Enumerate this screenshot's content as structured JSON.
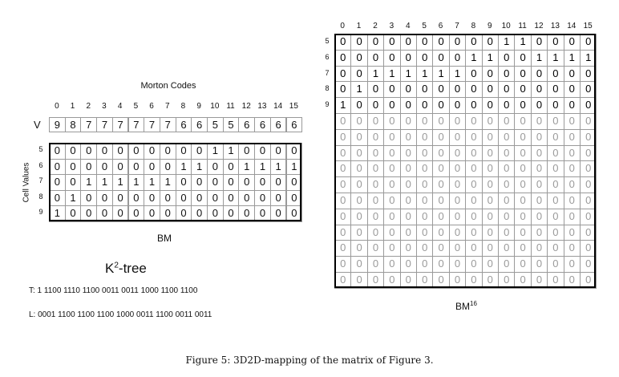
{
  "left": {
    "title": "Morton Codes",
    "col_indices": [
      "0",
      "1",
      "2",
      "3",
      "4",
      "5",
      "6",
      "7",
      "8",
      "9",
      "10",
      "11",
      "12",
      "13",
      "14",
      "15"
    ],
    "v_label": "V",
    "v_values": [
      "9",
      "8",
      "7",
      "7",
      "7",
      "7",
      "7",
      "7",
      "6",
      "6",
      "5",
      "5",
      "6",
      "6",
      "6",
      "6"
    ],
    "row_axis_label": "Cell Values",
    "row_labels": [
      "5",
      "6",
      "7",
      "8",
      "9"
    ],
    "bm_rows": [
      [
        "0",
        "0",
        "0",
        "0",
        "0",
        "0",
        "0",
        "0",
        "0",
        "0",
        "1",
        "1",
        "0",
        "0",
        "0",
        "0"
      ],
      [
        "0",
        "0",
        "0",
        "0",
        "0",
        "0",
        "0",
        "0",
        "1",
        "1",
        "0",
        "0",
        "1",
        "1",
        "1",
        "1"
      ],
      [
        "0",
        "0",
        "1",
        "1",
        "1",
        "1",
        "1",
        "1",
        "0",
        "0",
        "0",
        "0",
        "0",
        "0",
        "0",
        "0"
      ],
      [
        "0",
        "1",
        "0",
        "0",
        "0",
        "0",
        "0",
        "0",
        "0",
        "0",
        "0",
        "0",
        "0",
        "0",
        "0",
        "0"
      ],
      [
        "1",
        "0",
        "0",
        "0",
        "0",
        "0",
        "0",
        "0",
        "0",
        "0",
        "0",
        "0",
        "0",
        "0",
        "0",
        "0"
      ]
    ],
    "bm_label": "BM",
    "k2_title_base": "K",
    "k2_title_sup": "2",
    "k2_title_rest": "-tree",
    "t_line": "T: 1 1100 1110 1100 0011 0011 1000 1100 1100",
    "l_line": "L: 0001 1100 1100 1100 1000 0011 1100 0011 0011"
  },
  "right": {
    "col_indices": [
      "0",
      "1",
      "2",
      "3",
      "4",
      "5",
      "6",
      "7",
      "8",
      "9",
      "10",
      "11",
      "12",
      "13",
      "14",
      "15"
    ],
    "row_labels": [
      "5",
      "6",
      "7",
      "8",
      "9"
    ],
    "rows": [
      [
        "0",
        "0",
        "0",
        "0",
        "0",
        "0",
        "0",
        "0",
        "0",
        "0",
        "1",
        "1",
        "0",
        "0",
        "0",
        "0"
      ],
      [
        "0",
        "0",
        "0",
        "0",
        "0",
        "0",
        "0",
        "0",
        "1",
        "1",
        "0",
        "0",
        "1",
        "1",
        "1",
        "1"
      ],
      [
        "0",
        "0",
        "1",
        "1",
        "1",
        "1",
        "1",
        "1",
        "0",
        "0",
        "0",
        "0",
        "0",
        "0",
        "0",
        "0"
      ],
      [
        "0",
        "1",
        "0",
        "0",
        "0",
        "0",
        "0",
        "0",
        "0",
        "0",
        "0",
        "0",
        "0",
        "0",
        "0",
        "0"
      ],
      [
        "1",
        "0",
        "0",
        "0",
        "0",
        "0",
        "0",
        "0",
        "0",
        "0",
        "0",
        "0",
        "0",
        "0",
        "0",
        "0"
      ],
      [
        "0",
        "0",
        "0",
        "0",
        "0",
        "0",
        "0",
        "0",
        "0",
        "0",
        "0",
        "0",
        "0",
        "0",
        "0",
        "0"
      ],
      [
        "0",
        "0",
        "0",
        "0",
        "0",
        "0",
        "0",
        "0",
        "0",
        "0",
        "0",
        "0",
        "0",
        "0",
        "0",
        "0"
      ],
      [
        "0",
        "0",
        "0",
        "0",
        "0",
        "0",
        "0",
        "0",
        "0",
        "0",
        "0",
        "0",
        "0",
        "0",
        "0",
        "0"
      ],
      [
        "0",
        "0",
        "0",
        "0",
        "0",
        "0",
        "0",
        "0",
        "0",
        "0",
        "0",
        "0",
        "0",
        "0",
        "0",
        "0"
      ],
      [
        "0",
        "0",
        "0",
        "0",
        "0",
        "0",
        "0",
        "0",
        "0",
        "0",
        "0",
        "0",
        "0",
        "0",
        "0",
        "0"
      ],
      [
        "0",
        "0",
        "0",
        "0",
        "0",
        "0",
        "0",
        "0",
        "0",
        "0",
        "0",
        "0",
        "0",
        "0",
        "0",
        "0"
      ],
      [
        "0",
        "0",
        "0",
        "0",
        "0",
        "0",
        "0",
        "0",
        "0",
        "0",
        "0",
        "0",
        "0",
        "0",
        "0",
        "0"
      ],
      [
        "0",
        "0",
        "0",
        "0",
        "0",
        "0",
        "0",
        "0",
        "0",
        "0",
        "0",
        "0",
        "0",
        "0",
        "0",
        "0"
      ],
      [
        "0",
        "0",
        "0",
        "0",
        "0",
        "0",
        "0",
        "0",
        "0",
        "0",
        "0",
        "0",
        "0",
        "0",
        "0",
        "0"
      ],
      [
        "0",
        "0",
        "0",
        "0",
        "0",
        "0",
        "0",
        "0",
        "0",
        "0",
        "0",
        "0",
        "0",
        "0",
        "0",
        "0"
      ],
      [
        "0",
        "0",
        "0",
        "0",
        "0",
        "0",
        "0",
        "0",
        "0",
        "0",
        "0",
        "0",
        "0",
        "0",
        "0",
        "0"
      ]
    ],
    "bm16_base": "BM",
    "bm16_sup": "16"
  },
  "caption": "Figure 5: 3D2D-mapping of the matrix of Figure 3."
}
